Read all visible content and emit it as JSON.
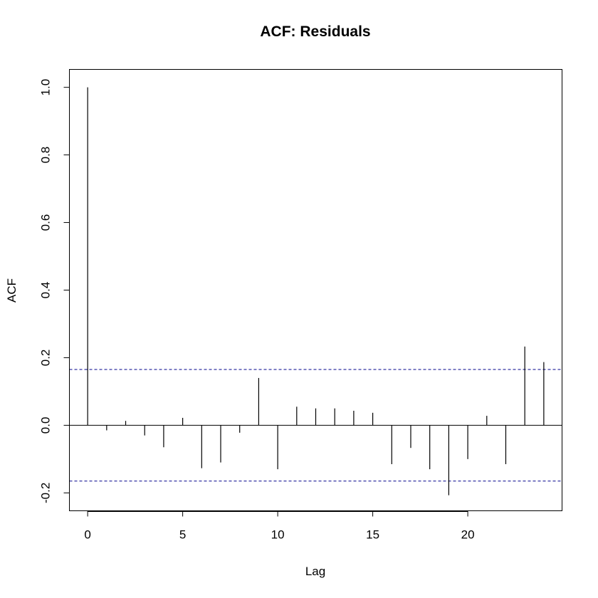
{
  "chart_data": {
    "type": "bar",
    "title": "ACF: Residuals",
    "xlabel": "Lag",
    "ylabel": "ACF",
    "x": [
      0,
      1,
      2,
      3,
      4,
      5,
      6,
      7,
      8,
      9,
      10,
      11,
      12,
      13,
      14,
      15,
      16,
      17,
      18,
      19,
      20,
      21,
      22,
      23,
      24
    ],
    "values": [
      1.0,
      -0.015,
      0.013,
      -0.03,
      -0.065,
      0.022,
      -0.127,
      -0.11,
      -0.022,
      0.14,
      -0.13,
      0.055,
      0.05,
      0.05,
      0.043,
      0.037,
      -0.115,
      -0.067,
      -0.13,
      -0.207,
      -0.1,
      0.028,
      -0.115,
      0.233,
      0.187
    ],
    "confidence_bound": 0.165,
    "xlim": [
      -0.96,
      24.96
    ],
    "ylim": [
      -0.253,
      1.053
    ],
    "xticks": [
      0,
      5,
      10,
      15,
      20
    ],
    "xtick_labels": [
      "0",
      "5",
      "10",
      "15",
      "20"
    ],
    "yticks": [
      -0.2,
      0.0,
      0.2,
      0.4,
      0.6,
      0.8,
      1.0
    ],
    "ytick_labels": [
      "-0.2",
      "0.0",
      "0.2",
      "0.4",
      "0.6",
      "0.8",
      "1.0"
    ],
    "grid": false,
    "colors": {
      "bars": "#000000",
      "zero_line": "#000000",
      "confidence_line": "#00008B",
      "frame": "#000000"
    }
  }
}
